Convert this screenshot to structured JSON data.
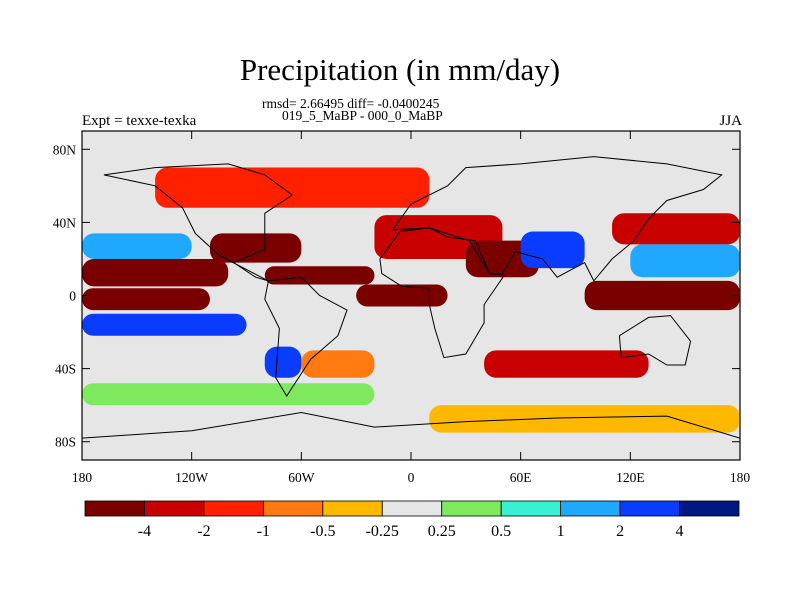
{
  "header": {
    "title": "Precipitation (in mm/day)",
    "stats": "rmsd= 2.66495 diff= -0.0400245",
    "subtitle": "019_5_MaBP - 000_0_MaBP",
    "left_label": "Expt = texxe-texka",
    "right_label": "JJA"
  },
  "chart_data": {
    "type": "heatmap",
    "title": "Precipitation (in mm/day)",
    "x_axis": {
      "range": [
        -180,
        180
      ],
      "ticks": [
        -180,
        -120,
        -60,
        0,
        60,
        120,
        180
      ],
      "tick_labels": [
        "180",
        "120W",
        "60W",
        "0",
        "60E",
        "120E",
        "180"
      ]
    },
    "y_axis": {
      "range": [
        -90,
        90
      ],
      "ticks": [
        80,
        40,
        0,
        -40,
        -80
      ],
      "tick_labels": [
        "80N",
        "40N",
        "0",
        "40S",
        "80S"
      ]
    },
    "colorbar": {
      "levels": [
        -4,
        -2,
        -1,
        -0.5,
        -0.25,
        0.25,
        0.5,
        1,
        2,
        4
      ],
      "level_labels": [
        "-4",
        "-2",
        "-1",
        "-0.5",
        "-0.25",
        "0.25",
        "0.5",
        "1",
        "2",
        "4"
      ],
      "colors": [
        "#7a0000",
        "#c80000",
        "#ff2000",
        "#ff7a10",
        "#ffb800",
        "#e6e6e6",
        "#7ee85e",
        "#38f0d2",
        "#20a8ff",
        "#0a3cff",
        "#001880"
      ]
    },
    "features": [
      {
        "lon": [
          -180,
          -100
        ],
        "lat": [
          5,
          20
        ],
        "level": 0
      },
      {
        "lon": [
          -180,
          -110
        ],
        "lat": [
          -8,
          4
        ],
        "level": 0
      },
      {
        "lon": [
          -180,
          -90
        ],
        "lat": [
          -22,
          -10
        ],
        "level": 9
      },
      {
        "lon": [
          -180,
          -120
        ],
        "lat": [
          20,
          34
        ],
        "level": 8
      },
      {
        "lon": [
          -110,
          -60
        ],
        "lat": [
          18,
          34
        ],
        "level": 0
      },
      {
        "lon": [
          -80,
          -20
        ],
        "lat": [
          6,
          16
        ],
        "level": 0
      },
      {
        "lon": [
          -30,
          20
        ],
        "lat": [
          -6,
          6
        ],
        "level": 0
      },
      {
        "lon": [
          -20,
          50
        ],
        "lat": [
          20,
          44
        ],
        "level": 1
      },
      {
        "lon": [
          30,
          70
        ],
        "lat": [
          10,
          30
        ],
        "level": 0
      },
      {
        "lon": [
          60,
          95
        ],
        "lat": [
          15,
          35
        ],
        "level": 9
      },
      {
        "lon": [
          95,
          180
        ],
        "lat": [
          -8,
          8
        ],
        "level": 0
      },
      {
        "lon": [
          110,
          180
        ],
        "lat": [
          28,
          45
        ],
        "level": 1
      },
      {
        "lon": [
          120,
          180
        ],
        "lat": [
          10,
          28
        ],
        "level": 8
      },
      {
        "lon": [
          40,
          130
        ],
        "lat": [
          -45,
          -30
        ],
        "level": 1
      },
      {
        "lon": [
          -80,
          -60
        ],
        "lat": [
          -45,
          -28
        ],
        "level": 9
      },
      {
        "lon": [
          -60,
          -20
        ],
        "lat": [
          -45,
          -30
        ],
        "level": 3
      },
      {
        "lon": [
          -180,
          180
        ],
        "lat": [
          -90,
          -75
        ],
        "level": 5
      },
      {
        "lon": [
          10,
          180
        ],
        "lat": [
          -75,
          -60
        ],
        "level": 4
      },
      {
        "lon": [
          -180,
          180
        ],
        "lat": [
          80,
          90
        ],
        "level": 5
      },
      {
        "lon": [
          -140,
          10
        ],
        "lat": [
          48,
          70
        ],
        "level": 2
      },
      {
        "lon": [
          -180,
          -20
        ],
        "lat": [
          -60,
          -48
        ],
        "level": 6
      }
    ]
  }
}
